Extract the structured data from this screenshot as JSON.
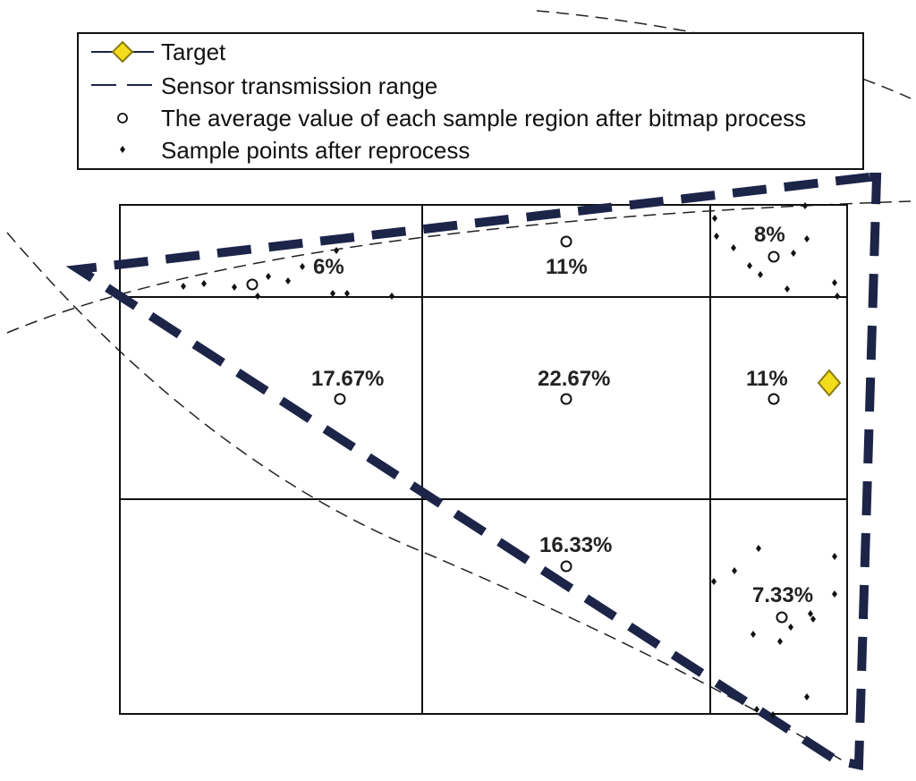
{
  "legend": {
    "items": [
      {
        "key": "target",
        "label": "Target"
      },
      {
        "key": "range",
        "label": "Sensor transmission range"
      },
      {
        "key": "average",
        "label": "The average value of each sample region after bitmap process"
      },
      {
        "key": "samples",
        "label": "Sample points after reprocess"
      }
    ]
  },
  "regions": [
    {
      "row": 0,
      "col": 0,
      "percent": "6%"
    },
    {
      "row": 0,
      "col": 1,
      "percent": "11%"
    },
    {
      "row": 0,
      "col": 2,
      "percent": "8%"
    },
    {
      "row": 1,
      "col": 0,
      "percent": "17.67%"
    },
    {
      "row": 1,
      "col": 1,
      "percent": "22.67%"
    },
    {
      "row": 1,
      "col": 2,
      "percent": "11%"
    },
    {
      "row": 2,
      "col": 1,
      "percent": "16.33%"
    },
    {
      "row": 2,
      "col": 2,
      "percent": "7.33%"
    }
  ],
  "colors": {
    "range_line": "#1c2448",
    "target_fill": "#f2dc1c",
    "target_stroke": "#8a7a10",
    "grid": "#111111",
    "marker": "#111111"
  }
}
